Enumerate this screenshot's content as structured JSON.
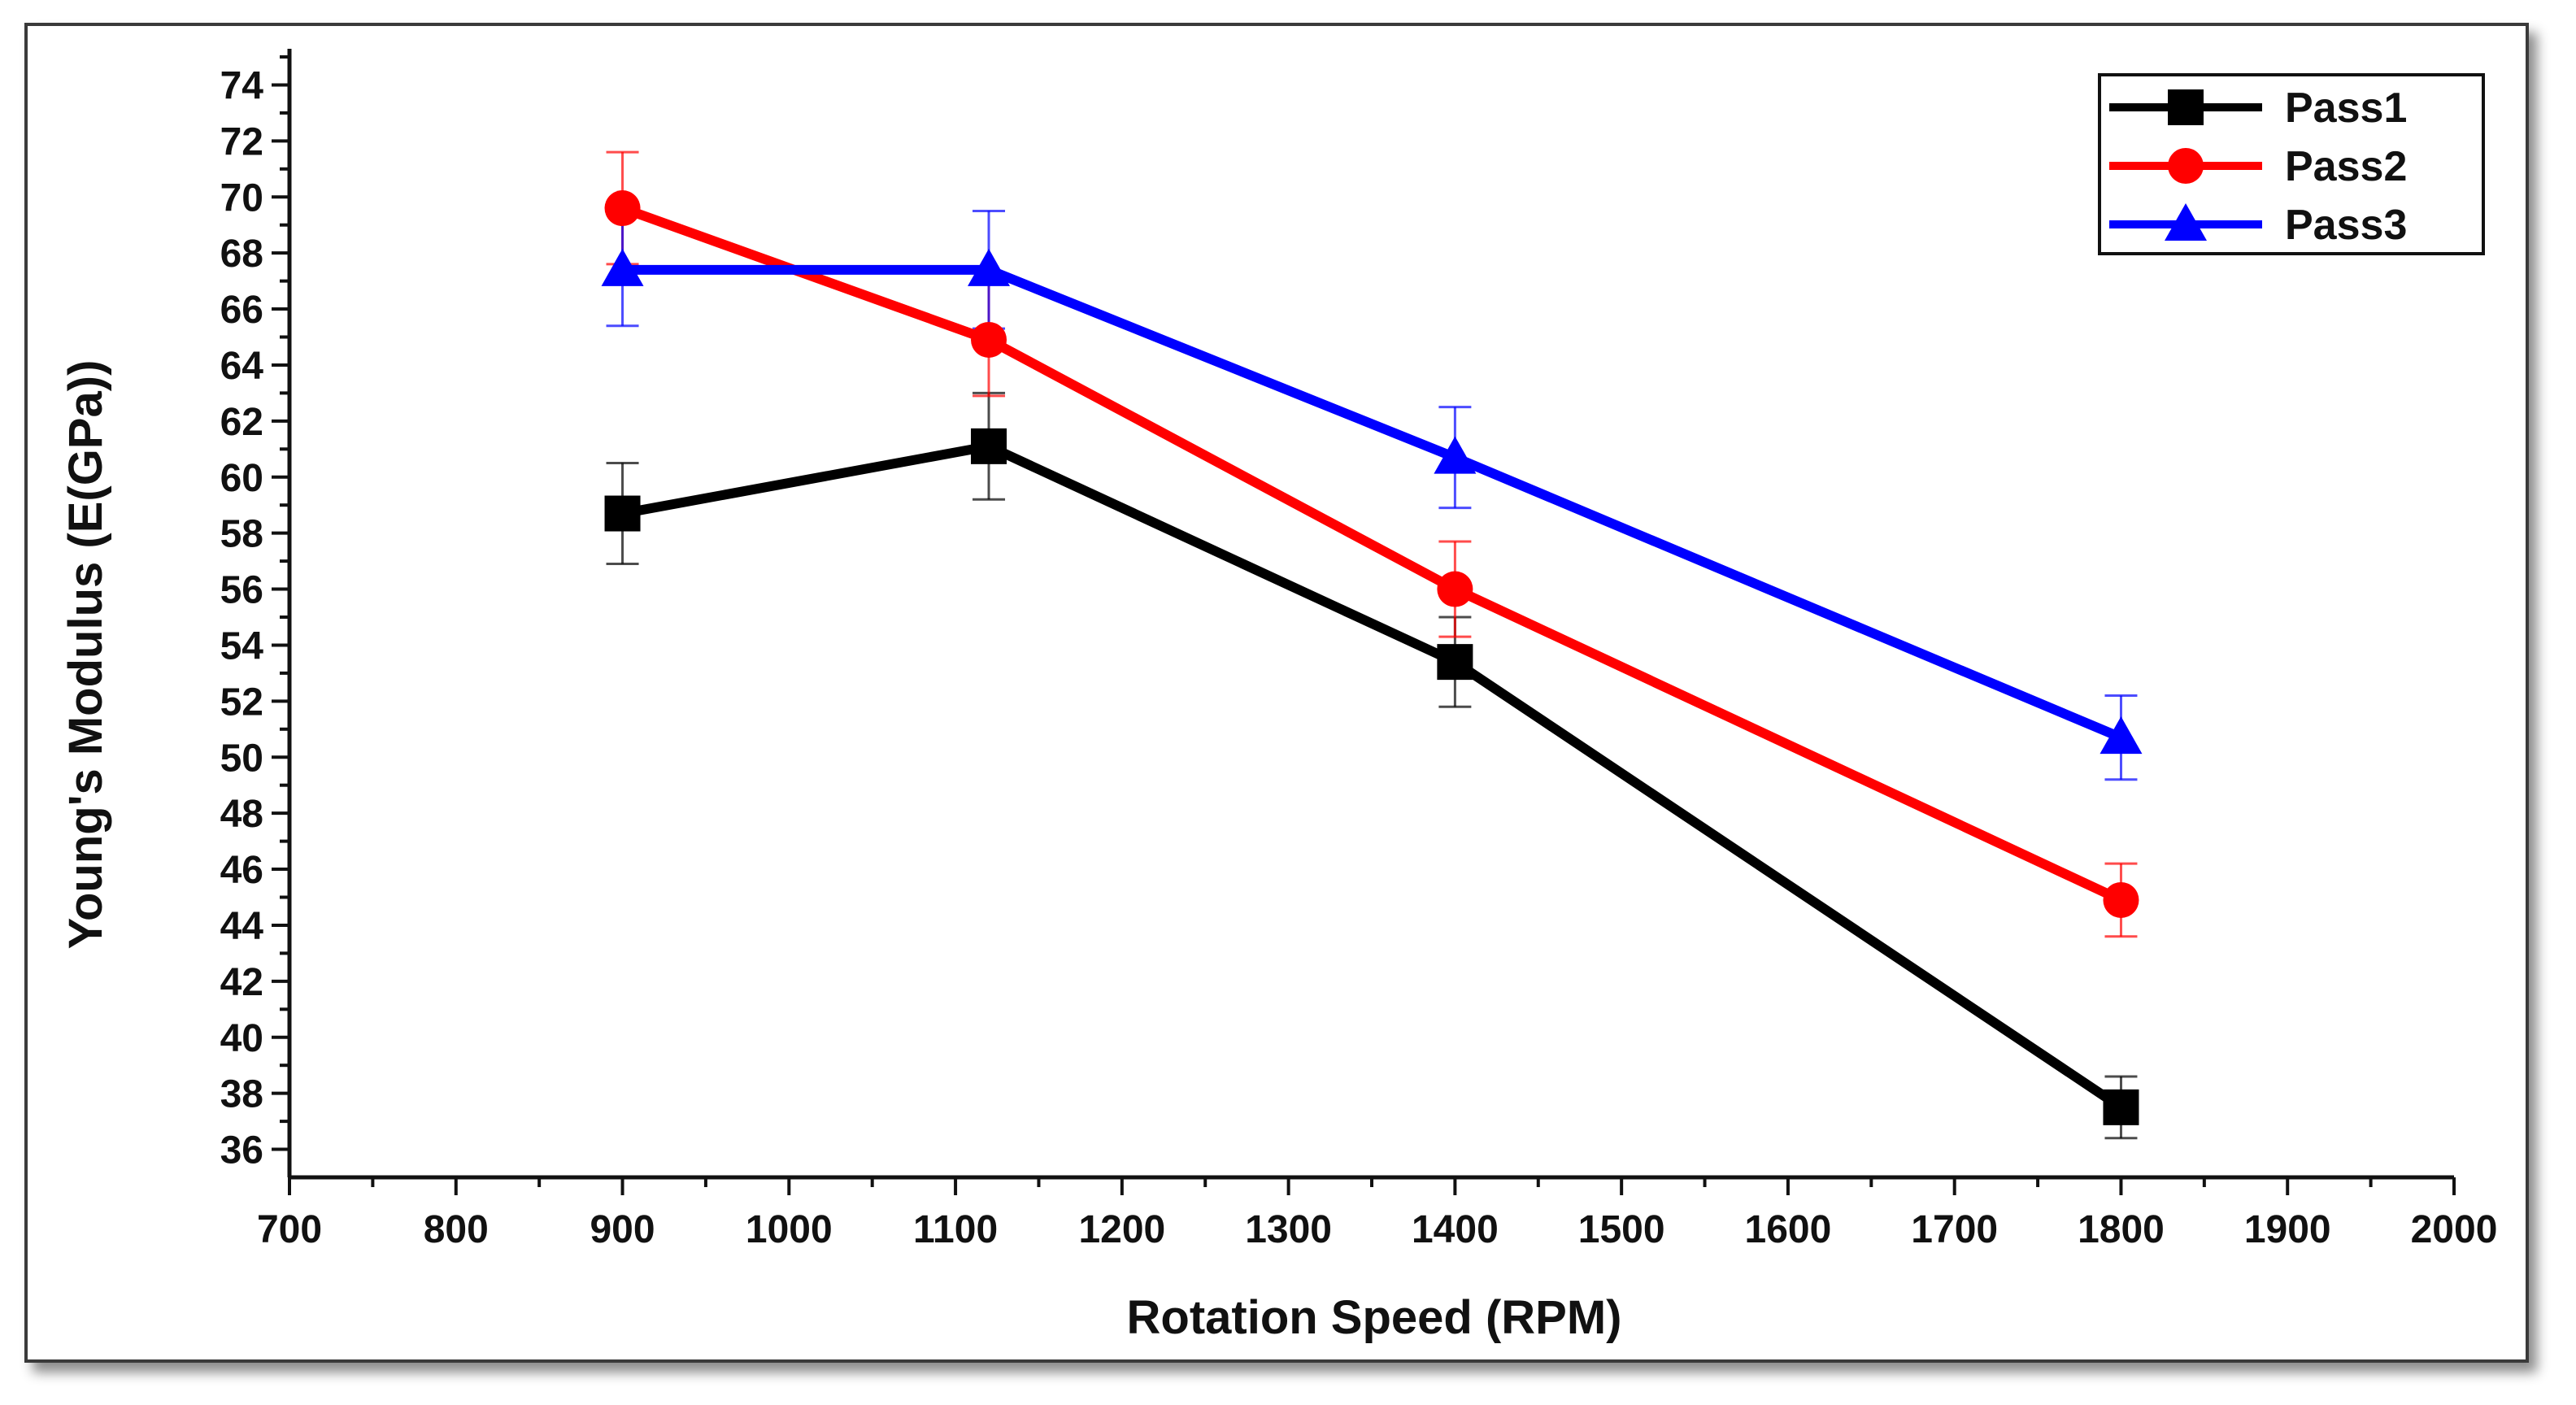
{
  "chart_data": {
    "type": "line",
    "title": "",
    "xlabel": "Rotation Speed (RPM)",
    "ylabel": "Young's Modulus (E(GPa))",
    "xlim": [
      700,
      2000
    ],
    "ylim": [
      35,
      75
    ],
    "xticks": [
      700,
      800,
      900,
      1000,
      1100,
      1200,
      1300,
      1400,
      1500,
      1600,
      1700,
      1800,
      1900,
      2000
    ],
    "yticks": [
      36,
      38,
      40,
      42,
      44,
      46,
      48,
      50,
      52,
      54,
      56,
      58,
      60,
      62,
      64,
      66,
      68,
      70,
      72,
      74
    ],
    "x": [
      900,
      1120,
      1400,
      1800
    ],
    "legend_position": "top-right",
    "series": [
      {
        "name": "Pass1",
        "color": "#000000",
        "marker": "square",
        "values": [
          58.7,
          61.1,
          53.4,
          37.5
        ],
        "errors": [
          1.8,
          1.9,
          1.6,
          1.1
        ]
      },
      {
        "name": "Pass2",
        "color": "#ff0000",
        "marker": "circle",
        "values": [
          69.6,
          64.9,
          56.0,
          44.9
        ],
        "errors": [
          2.0,
          2.0,
          1.7,
          1.3
        ]
      },
      {
        "name": "Pass3",
        "color": "#0000ff",
        "marker": "triangle",
        "values": [
          67.4,
          67.4,
          60.7,
          50.7
        ],
        "errors": [
          2.0,
          2.1,
          1.8,
          1.5
        ]
      }
    ]
  }
}
